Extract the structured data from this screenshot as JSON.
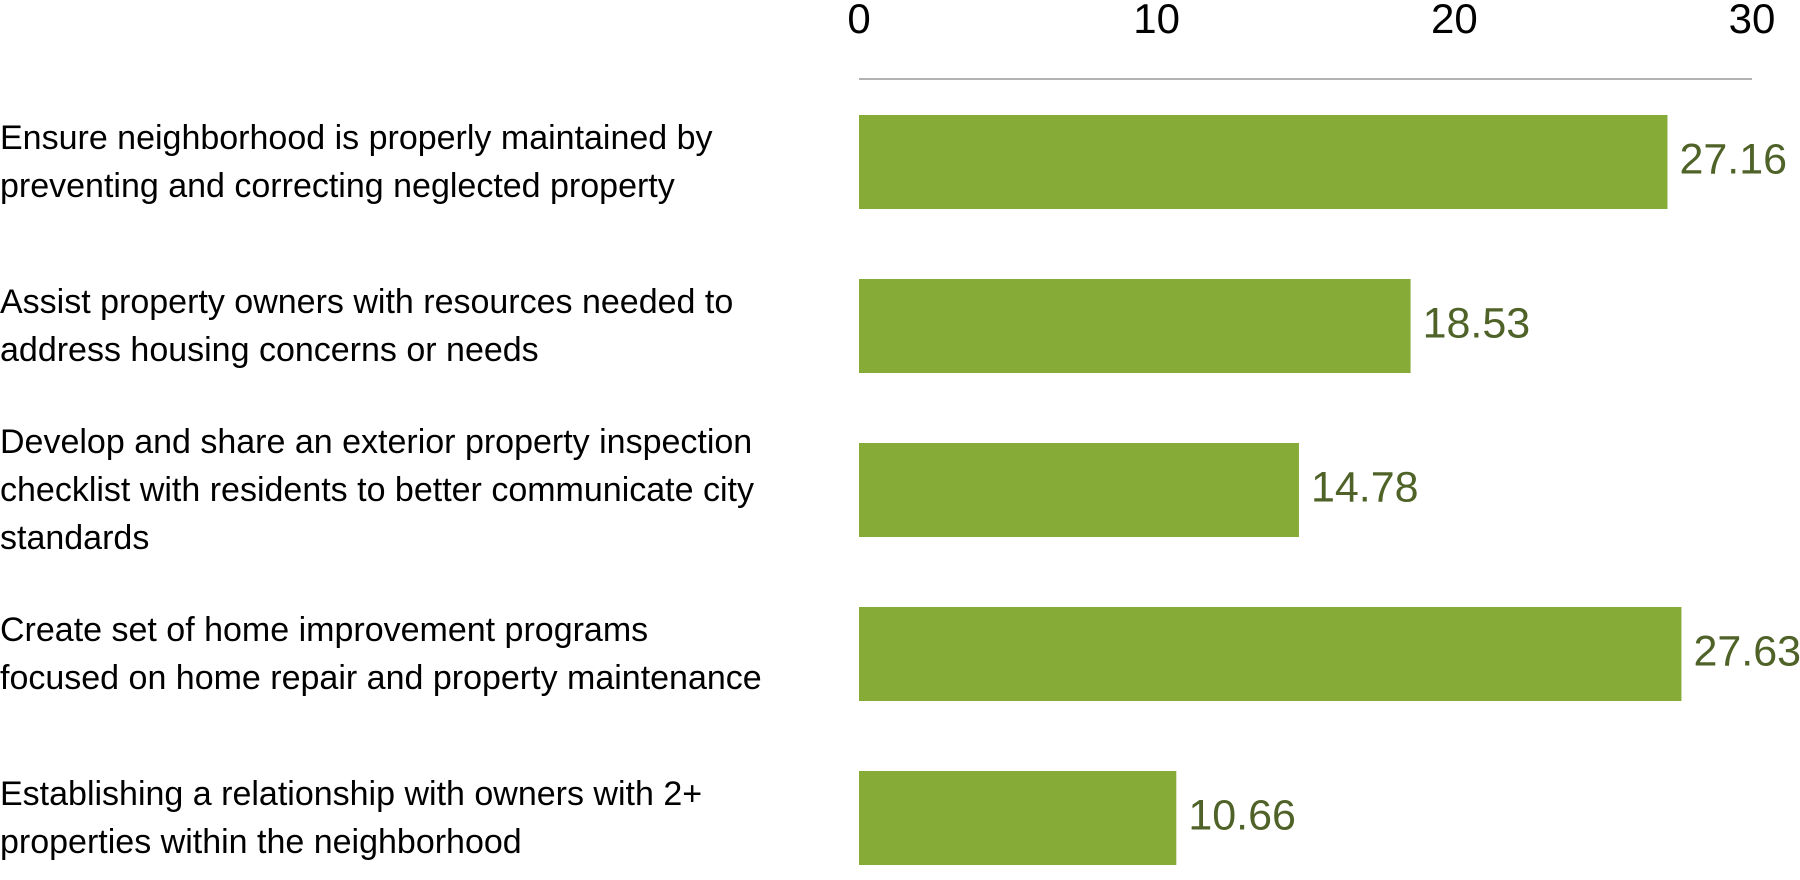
{
  "chart_data": {
    "type": "bar",
    "orientation": "horizontal",
    "categories": [
      "Ensure neighborhood is properly maintained by preventing and correcting neglected property",
      "Assist property owners with resources needed to address housing concerns or needs",
      "Develop and share an exterior property inspection checklist with residents to better communicate city standards",
      "Create set of home improvement programs focused on home repair and property maintenance",
      "Establishing a relationship with owners with 2+ properties within the neighborhood"
    ],
    "values": [
      27.16,
      18.53,
      14.78,
      27.63,
      10.66
    ],
    "color": "#86ab37",
    "value_label_color": "#4f6228",
    "xlim": [
      0,
      30
    ],
    "xticks": [
      0,
      10,
      20,
      30
    ],
    "xaxis_position": "top"
  }
}
